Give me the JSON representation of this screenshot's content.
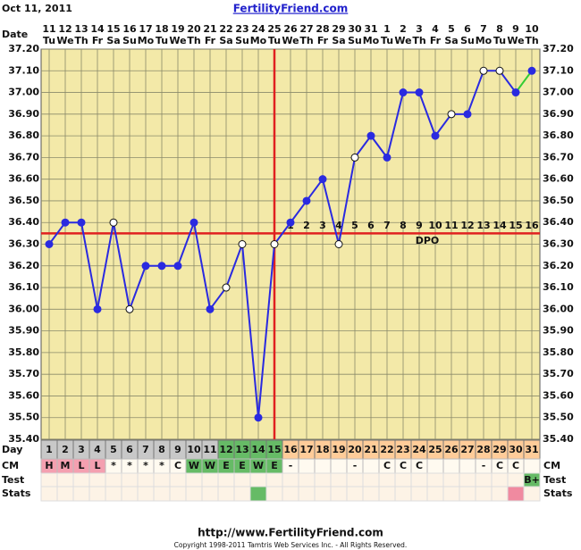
{
  "chart_data": {
    "type": "line",
    "header_date": "Oct 11, 2011",
    "site": "FertilityFriend.com",
    "row_labels": {
      "date": "Date",
      "day": "Day",
      "cm": "CM",
      "test": "Test",
      "stats": "Stats"
    },
    "categories": [
      1,
      2,
      3,
      4,
      5,
      6,
      7,
      8,
      9,
      10,
      11,
      12,
      13,
      14,
      15,
      16,
      17,
      18,
      19,
      20,
      21,
      22,
      23,
      24,
      25,
      26,
      27,
      28,
      29,
      30,
      31
    ],
    "dates": [
      11,
      12,
      13,
      14,
      15,
      16,
      17,
      18,
      19,
      20,
      21,
      22,
      23,
      24,
      25,
      26,
      27,
      28,
      29,
      30,
      31,
      1,
      2,
      3,
      4,
      5,
      6,
      7,
      8,
      9,
      10
    ],
    "weekdays": [
      "Tu",
      "We",
      "Th",
      "Fr",
      "Sa",
      "Su",
      "Mo",
      "Tu",
      "We",
      "Th",
      "Fr",
      "Sa",
      "Su",
      "Mo",
      "Tu",
      "We",
      "Th",
      "Fr",
      "Sa",
      "Su",
      "Mo",
      "Tu",
      "We",
      "Th",
      "Fr",
      "Sa",
      "Su",
      "Mo",
      "Tu",
      "We",
      "Th"
    ],
    "series": [
      {
        "color": "#2a2ae0",
        "tail_color": "#33cc33",
        "values": [
          36.3,
          36.4,
          36.4,
          36.0,
          36.4,
          36.0,
          36.2,
          36.2,
          36.2,
          36.4,
          36.0,
          36.1,
          36.3,
          35.5,
          36.3,
          36.4,
          36.5,
          36.6,
          36.3,
          36.7,
          36.8,
          36.7,
          37.0,
          37.0,
          36.8,
          36.9,
          36.9,
          37.1,
          37.1,
          37.0,
          37.1
        ],
        "filled": [
          true,
          true,
          true,
          true,
          false,
          false,
          true,
          true,
          true,
          true,
          true,
          false,
          false,
          true,
          false,
          true,
          true,
          true,
          false,
          false,
          true,
          true,
          true,
          true,
          true,
          false,
          true,
          false,
          false,
          true,
          true
        ]
      }
    ],
    "coverline": 36.35,
    "ovulation_day": 15,
    "line_color": "#e02020",
    "dpo": [
      null,
      null,
      null,
      null,
      null,
      null,
      null,
      null,
      null,
      null,
      null,
      null,
      null,
      null,
      null,
      1,
      2,
      3,
      4,
      5,
      6,
      7,
      8,
      9,
      10,
      11,
      12,
      13,
      14,
      15,
      16
    ],
    "dpo_label": "DPO",
    "ylim": [
      35.4,
      37.2
    ],
    "yticks": [
      {
        "value": 35.4,
        "label": "35.40"
      },
      {
        "value": 35.5,
        "label": "35.50"
      },
      {
        "value": 35.6,
        "label": "35.60"
      },
      {
        "value": 35.7,
        "label": "35.70"
      },
      {
        "value": 35.8,
        "label": "35.80"
      },
      {
        "value": 35.9,
        "label": "35.90"
      },
      {
        "value": 36.0,
        "label": "36.00"
      },
      {
        "value": 36.1,
        "label": "36.10"
      },
      {
        "value": 36.2,
        "label": "36.20"
      },
      {
        "value": 36.3,
        "label": "36.30"
      },
      {
        "value": 36.4,
        "label": "36.40"
      },
      {
        "value": 36.5,
        "label": "36.50"
      },
      {
        "value": 36.6,
        "label": "36.60"
      },
      {
        "value": 36.7,
        "label": "36.70"
      },
      {
        "value": 36.8,
        "label": "36.80"
      },
      {
        "value": 36.9,
        "label": "36.90"
      },
      {
        "value": 37.0,
        "label": "37.00"
      },
      {
        "value": 37.1,
        "label": "37.10"
      },
      {
        "value": 37.2,
        "label": "37.20"
      }
    ],
    "grid": true,
    "day_colors": [
      "#c8c8c8",
      "#c8c8c8",
      "#c8c8c8",
      "#c8c8c8",
      "#c8c8c8",
      "#c8c8c8",
      "#c8c8c8",
      "#c8c8c8",
      "#c8c8c8",
      "#c8c8c8",
      "#c8c8c8",
      "#66bb66",
      "#66bb66",
      "#66bb66",
      "#66bb66",
      "#ffcc99",
      "#ffcc99",
      "#ffcc99",
      "#ffcc99",
      "#ffcc99",
      "#ffcc99",
      "#ffcc99",
      "#ffcc99",
      "#ffcc99",
      "#ffcc99",
      "#ffcc99",
      "#ffcc99",
      "#ffcc99",
      "#ffcc99",
      "#ffcc99",
      "#ffcc99"
    ],
    "cm": [
      "H",
      "M",
      "L",
      "L",
      "*",
      "*",
      "*",
      "*",
      "C",
      "W",
      "W",
      "E",
      "E",
      "W",
      "E",
      "-",
      null,
      null,
      null,
      "-",
      null,
      "C",
      "C",
      "C",
      null,
      null,
      null,
      "-",
      "C",
      "C",
      null
    ],
    "cm_colors": [
      "#f4a0b0",
      "#f4a0b0",
      "#f4a0b0",
      "#f4a0b0",
      null,
      null,
      null,
      null,
      null,
      "#66bb66",
      "#66bb66",
      "#66bb66",
      "#66bb66",
      "#66bb66",
      "#66bb66",
      null,
      null,
      null,
      null,
      null,
      null,
      null,
      null,
      null,
      null,
      null,
      null,
      null,
      null,
      null,
      null
    ],
    "test": [
      null,
      null,
      null,
      null,
      null,
      null,
      null,
      null,
      null,
      null,
      null,
      null,
      null,
      null,
      null,
      null,
      null,
      null,
      null,
      null,
      null,
      null,
      null,
      null,
      null,
      null,
      null,
      null,
      null,
      null,
      "B+"
    ],
    "test_colors": [
      null,
      null,
      null,
      null,
      null,
      null,
      null,
      null,
      null,
      null,
      null,
      null,
      null,
      null,
      null,
      null,
      null,
      null,
      null,
      null,
      null,
      null,
      null,
      null,
      null,
      null,
      null,
      null,
      null,
      null,
      "#66bb66"
    ],
    "stats_colors": [
      null,
      null,
      null,
      null,
      null,
      null,
      null,
      null,
      null,
      null,
      null,
      null,
      null,
      "#66bb66",
      null,
      null,
      null,
      null,
      null,
      null,
      null,
      null,
      null,
      null,
      null,
      null,
      null,
      null,
      null,
      "#f08aa0",
      null
    ],
    "footer_url": "http://www.FertilityFriend.com",
    "copyright": "Copyright 1998-2011 Tamtris Web Services Inc. - All Rights Reserved."
  }
}
